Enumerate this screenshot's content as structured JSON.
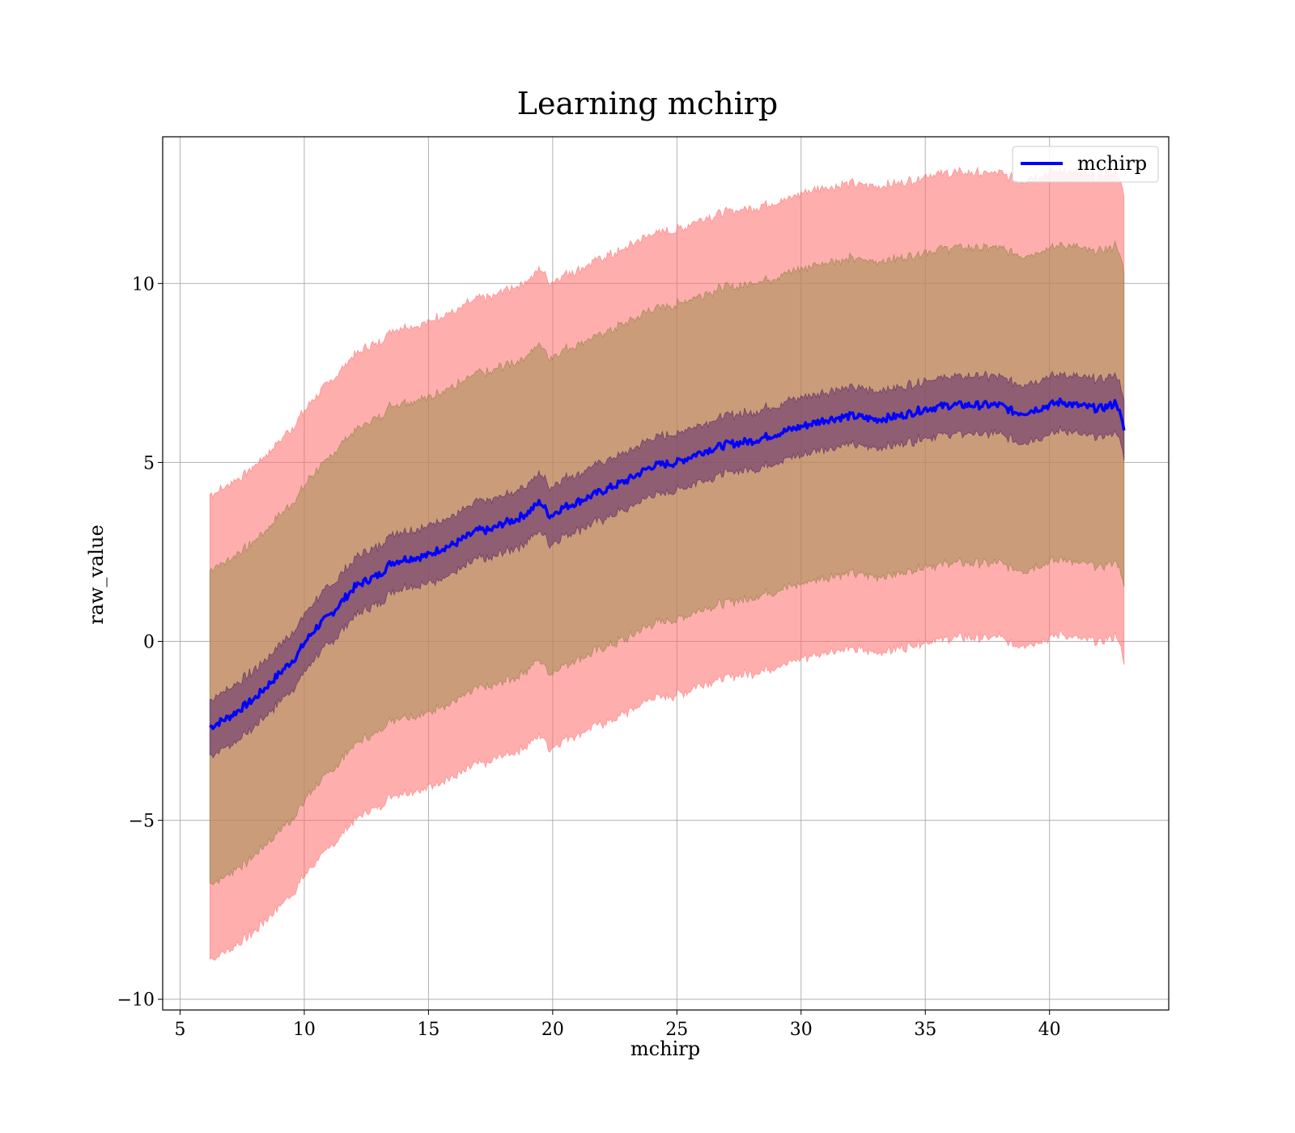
{
  "chart_data": {
    "type": "line",
    "title": "Learning mchirp",
    "xlabel": "mchirp",
    "ylabel": "raw_value",
    "xlim": [
      4.3,
      44.8
    ],
    "ylim": [
      -10.3,
      14.1
    ],
    "xticks": [
      5,
      10,
      15,
      20,
      25,
      30,
      35,
      40
    ],
    "yticks": [
      -10,
      -5,
      0,
      5,
      10
    ],
    "xtick_labels": [
      "5",
      "10",
      "15",
      "20",
      "25",
      "30",
      "35",
      "40"
    ],
    "ytick_labels": [
      "−10",
      "−5",
      "0",
      "5",
      "10"
    ],
    "grid": true,
    "legend": {
      "position": "top-right",
      "entries": [
        "mchirp"
      ]
    },
    "colors": {
      "line": "#0000ff",
      "outer_band": "#ff6b6b",
      "middle_band": "#a08e4f",
      "inner_band": "#5e2b6e",
      "grid": "#b0b0b0"
    },
    "series": [
      {
        "name": "mchirp",
        "x": [
          6.2,
          7.0,
          8.0,
          9.0,
          9.7,
          10.0,
          10.5,
          11.0,
          11.5,
          12.0,
          12.5,
          13.0,
          13.5,
          14.0,
          14.5,
          15.0,
          15.5,
          16.0,
          16.5,
          17.0,
          17.5,
          18.0,
          18.5,
          19.0,
          19.5,
          19.9,
          20.3,
          21.0,
          22.0,
          23.0,
          24.0,
          25.0,
          26.0,
          27.0,
          28.0,
          29.0,
          30.0,
          31.0,
          32.0,
          33.0,
          34.0,
          35.0,
          36.0,
          37.0,
          38.0,
          38.6,
          39.0,
          40.0,
          40.5,
          41.0,
          42.0,
          42.5,
          42.7,
          43.0
        ],
        "y": [
          -2.4,
          -2.1,
          -1.6,
          -0.9,
          -0.4,
          -0.05,
          0.4,
          0.7,
          1.1,
          1.5,
          1.7,
          1.85,
          2.2,
          2.3,
          2.35,
          2.4,
          2.6,
          2.7,
          2.9,
          3.1,
          3.1,
          3.3,
          3.4,
          3.6,
          3.9,
          3.5,
          3.7,
          3.9,
          4.2,
          4.5,
          4.9,
          5.0,
          5.3,
          5.5,
          5.6,
          5.8,
          6.0,
          6.2,
          6.3,
          6.2,
          6.3,
          6.5,
          6.6,
          6.6,
          6.6,
          6.4,
          6.4,
          6.6,
          6.7,
          6.6,
          6.5,
          6.6,
          6.7,
          5.9
        ],
        "inner_band_halfwidth": 0.8,
        "middle_band_halfwidth": 4.4,
        "outer_band_halfwidth": 6.5
      }
    ]
  }
}
